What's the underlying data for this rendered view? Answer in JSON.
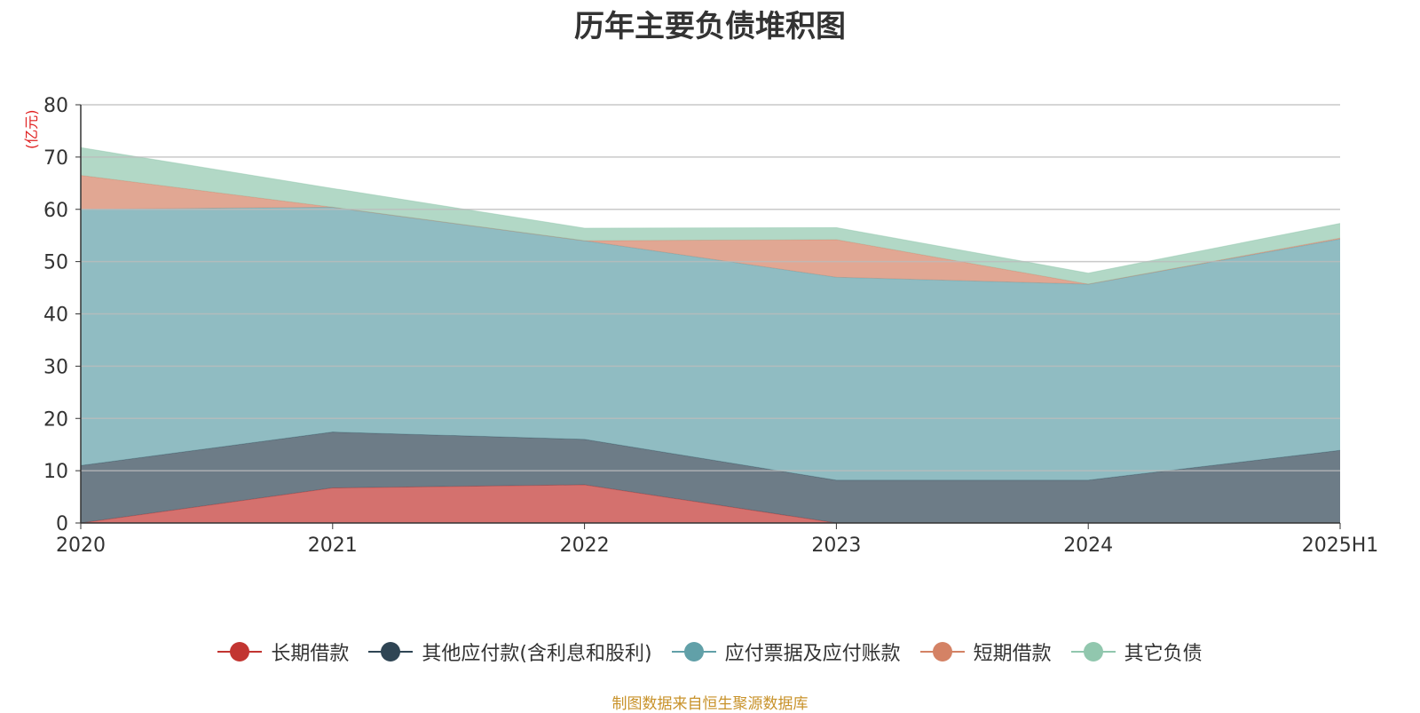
{
  "chart_data": {
    "type": "area",
    "stacked": true,
    "title": "历年主要负债堆积图",
    "ylabel": "(亿元)",
    "xlabel": "",
    "categories": [
      "2020",
      "2021",
      "2022",
      "2023",
      "2024",
      "2025H1"
    ],
    "ylim": [
      0,
      80
    ],
    "yticks": [
      0,
      10,
      20,
      30,
      40,
      50,
      60,
      70,
      80
    ],
    "grid": true,
    "legend_position": "bottom",
    "series": [
      {
        "name": "长期借款",
        "color": "#c23531",
        "values": [
          0,
          6.7,
          7.3,
          0,
          0,
          0
        ]
      },
      {
        "name": "其他应付款(含利息和股利)",
        "color": "#2f4554",
        "values": [
          11,
          10.7,
          8.7,
          8.2,
          8.2,
          13.9
        ]
      },
      {
        "name": "应付票据及应付账款",
        "color": "#61a0a8",
        "values": [
          49,
          43,
          38,
          38.8,
          37.5,
          40.4
        ]
      },
      {
        "name": "短期借款",
        "color": "#d48265",
        "values": [
          6.5,
          0,
          0,
          7.2,
          0,
          0.2
        ]
      },
      {
        "name": "其它负债",
        "color": "#91c7ae",
        "values": [
          5.3,
          3.6,
          2.4,
          2.3,
          2.1,
          2.8
        ]
      }
    ],
    "source": "制图数据来自恒生聚源数据库"
  }
}
